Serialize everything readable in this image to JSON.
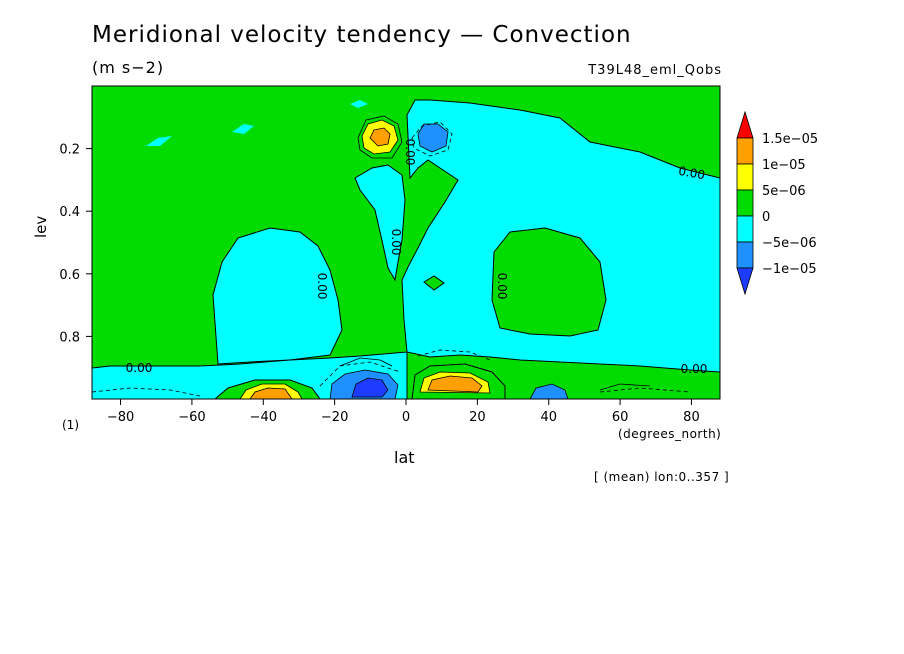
{
  "chart_data": {
    "type": "contour",
    "title": "Meridional velocity tendency — Convection",
    "units": "(m s−2)",
    "run_label": "T39L48_eml_Qobs",
    "xlabel": "lat",
    "x_units": "(degrees_north)",
    "ylabel": "lev",
    "scale_factor": "(1)",
    "note": "[ (mean) lon:0..357 ]",
    "xlim": [
      -88,
      88
    ],
    "ylim": [
      1.0,
      0.0
    ],
    "x_ticks": [
      -80,
      -60,
      -40,
      -20,
      0,
      20,
      40,
      60,
      80
    ],
    "y_ticks": [
      0.2,
      0.4,
      0.6,
      0.8
    ],
    "x_tick_labels": [
      "−80",
      "−60",
      "−40",
      "−20",
      "0",
      "20",
      "40",
      "60",
      "80"
    ],
    "y_tick_labels": [
      "0.2",
      "0.4",
      "0.6",
      "0.8"
    ],
    "contour_labels": [
      "0.00",
      "0.00",
      "0.00",
      "0.00",
      "0.00",
      "0.00",
      "0.00"
    ],
    "colorbar": {
      "levels": [
        "1.5e−05",
        "1e−05",
        "5e−06",
        "0",
        "−5e−06",
        "−1e−05"
      ],
      "colors": [
        "#ff0000",
        "#ffa000",
        "#ffff00",
        "#00dc00",
        "#00ffff",
        "#1e90ff",
        "#1e3cff"
      ]
    },
    "colors": {
      "positive_small": "#00dc00",
      "negative_small": "#00ffff",
      "negative_mid": "#1e90ff",
      "negative_large": "#1e3cff",
      "positive_mid": "#ffff00",
      "positive_large": "#ffa000",
      "max": "#ff0000"
    }
  }
}
